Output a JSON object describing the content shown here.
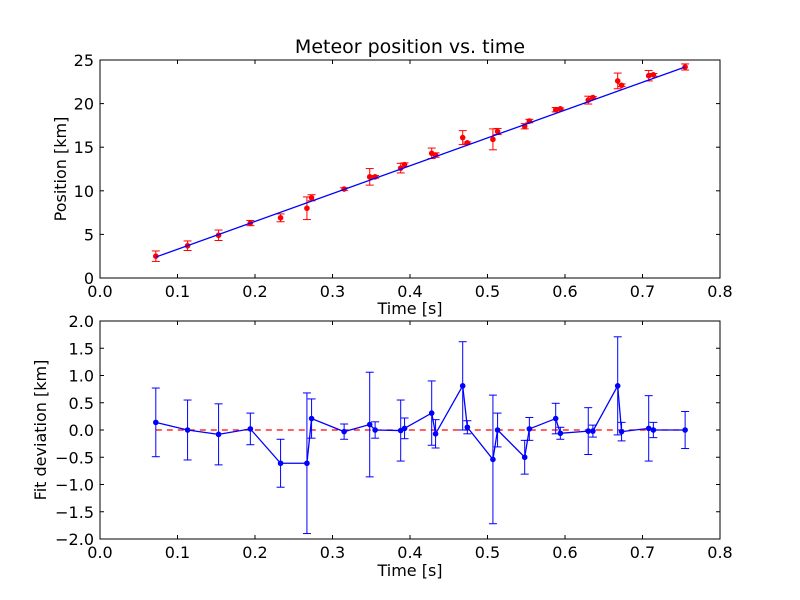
{
  "chart_data": [
    {
      "type": "scatter",
      "title": "Meteor position vs. time",
      "xlabel": "Time [s]",
      "ylabel": "Position [km]",
      "xlim": [
        0.0,
        0.8
      ],
      "ylim": [
        0,
        25
      ],
      "xticks": [
        "0.0",
        "0.1",
        "0.2",
        "0.3",
        "0.4",
        "0.5",
        "0.6",
        "0.7",
        "0.8"
      ],
      "yticks": [
        "0",
        "5",
        "10",
        "15",
        "20",
        "25"
      ],
      "grid": false,
      "series": [
        {
          "kind": "errorbar-points",
          "color": "#ff0000",
          "x": [
            0.072,
            0.113,
            0.153,
            0.194,
            0.233,
            0.267,
            0.273,
            0.315,
            0.348,
            0.355,
            0.388,
            0.393,
            0.428,
            0.433,
            0.468,
            0.474,
            0.507,
            0.513,
            0.548,
            0.554,
            0.588,
            0.594,
            0.63,
            0.636,
            0.668,
            0.673,
            0.708,
            0.714,
            0.755
          ],
          "y": [
            2.5,
            3.7,
            4.9,
            6.3,
            6.9,
            8.0,
            9.2,
            10.2,
            11.6,
            11.6,
            12.6,
            13.0,
            14.3,
            14.1,
            16.1,
            15.5,
            15.9,
            16.8,
            17.4,
            18.0,
            19.3,
            19.4,
            20.4,
            20.7,
            22.6,
            22.1,
            23.2,
            23.3,
            24.2
          ],
          "yerr": [
            0.6,
            0.55,
            0.6,
            0.3,
            0.45,
            1.3,
            0.35,
            0.15,
            0.95,
            0.15,
            0.55,
            0.2,
            0.6,
            0.25,
            0.8,
            0.1,
            1.2,
            0.35,
            0.3,
            0.2,
            0.25,
            0.1,
            0.45,
            0.1,
            0.9,
            0.15,
            0.6,
            0.15,
            0.35
          ]
        },
        {
          "kind": "fit-line",
          "color": "#0000ff",
          "x": [
            0.072,
            0.755
          ],
          "y": [
            2.4,
            24.2
          ]
        }
      ]
    },
    {
      "type": "line",
      "xlabel": "Time [s]",
      "ylabel": "Fit deviation [km]",
      "xlim": [
        0.0,
        0.8
      ],
      "ylim": [
        -2.0,
        2.0
      ],
      "xticks": [
        "0.0",
        "0.1",
        "0.2",
        "0.3",
        "0.4",
        "0.5",
        "0.6",
        "0.7",
        "0.8"
      ],
      "yticks": [
        "2.0",
        "1.5",
        "1.0",
        "0.5",
        "0.0",
        "−0.5",
        "−1.0",
        "−1.5",
        "−2.0"
      ],
      "grid": false,
      "reference_line": {
        "y": 0.0,
        "color": "#ff0000",
        "style": "dashed"
      },
      "series": [
        {
          "kind": "errorbar-line",
          "color": "#0000ff",
          "x": [
            0.072,
            0.113,
            0.153,
            0.194,
            0.233,
            0.267,
            0.273,
            0.315,
            0.348,
            0.355,
            0.388,
            0.393,
            0.428,
            0.433,
            0.468,
            0.474,
            0.507,
            0.513,
            0.548,
            0.554,
            0.588,
            0.594,
            0.63,
            0.636,
            0.668,
            0.673,
            0.708,
            0.714,
            0.755
          ],
          "y": [
            0.14,
            0.0,
            -0.08,
            0.02,
            -0.61,
            -0.61,
            0.21,
            -0.03,
            0.1,
            0.0,
            -0.01,
            0.03,
            0.31,
            -0.07,
            0.81,
            0.05,
            -0.54,
            0.0,
            -0.5,
            0.02,
            0.21,
            -0.06,
            -0.02,
            -0.02,
            0.81,
            -0.03,
            0.03,
            0.0,
            0.0
          ],
          "yerr": [
            0.63,
            0.55,
            0.56,
            0.29,
            0.44,
            1.29,
            0.36,
            0.14,
            0.96,
            0.15,
            0.56,
            0.19,
            0.59,
            0.26,
            0.81,
            0.12,
            1.18,
            0.31,
            0.31,
            0.21,
            0.28,
            0.11,
            0.43,
            0.11,
            0.9,
            0.17,
            0.6,
            0.14,
            0.34
          ]
        }
      ]
    }
  ]
}
